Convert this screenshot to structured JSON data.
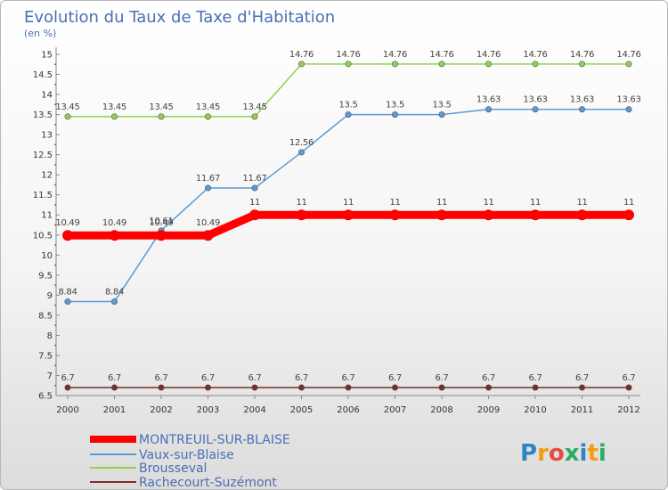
{
  "chart_data": {
    "type": "line",
    "title": "Evolution du Taux de Taxe d'Habitation",
    "subtitle": "(en %)",
    "x": [
      "2000",
      "2001",
      "2002",
      "2003",
      "2004",
      "2005",
      "2006",
      "2007",
      "2008",
      "2009",
      "2010",
      "2011",
      "2012"
    ],
    "ylim": [
      6.5,
      15
    ],
    "yticks": [
      "6.5",
      "7",
      "7.5",
      "8",
      "8.5",
      "9",
      "9.5",
      "10",
      "10.5",
      "11",
      "11.5",
      "12",
      "12.5",
      "13",
      "13.5",
      "14",
      "14.5",
      "15"
    ],
    "grid": false,
    "legend_position": "bottom-left",
    "series": [
      {
        "name": "MONTREUIL-SUR-BLAISE",
        "color": "#ff0000",
        "values": [
          10.49,
          10.49,
          10.49,
          10.49,
          11,
          11,
          11,
          11,
          11,
          11,
          11,
          11,
          11
        ],
        "labels": [
          "10.49",
          "10.49",
          "10.49",
          "10.49",
          "11",
          "11",
          "11",
          "11",
          "11",
          "11",
          "11",
          "11",
          "11"
        ]
      },
      {
        "name": "Vaux-sur-Blaise",
        "color": "#5b9bd5",
        "values": [
          8.84,
          8.84,
          10.61,
          11.67,
          11.67,
          12.56,
          13.5,
          13.5,
          13.5,
          13.63,
          13.63,
          13.63,
          13.63
        ],
        "labels": [
          "8.84",
          "8.84",
          "10.61",
          "11.67",
          "11.67",
          "12.56",
          "13.5",
          "13.5",
          "13.5",
          "13.63",
          "13.63",
          "13.63",
          "13.63"
        ]
      },
      {
        "name": "Brousseval",
        "color": "#92d050",
        "values": [
          13.45,
          13.45,
          13.45,
          13.45,
          13.45,
          14.76,
          14.76,
          14.76,
          14.76,
          14.76,
          14.76,
          14.76,
          14.76
        ],
        "labels": [
          "13.45",
          "13.45",
          "13.45",
          "13.45",
          "13.45",
          "14.76",
          "14.76",
          "14.76",
          "14.76",
          "14.76",
          "14.76",
          "14.76",
          "14.76"
        ]
      },
      {
        "name": "Rachecourt-Suzémont",
        "color": "#7b2c2c",
        "values": [
          6.7,
          6.7,
          6.7,
          6.7,
          6.7,
          6.7,
          6.7,
          6.7,
          6.7,
          6.7,
          6.7,
          6.7,
          6.7
        ],
        "labels": [
          "6.7",
          "6.7",
          "6.7",
          "6.7",
          "6.7",
          "6.7",
          "6.7",
          "6.7",
          "6.7",
          "6.7",
          "6.7",
          "6.7",
          "6.7"
        ]
      }
    ]
  },
  "brand": {
    "text": "Proxiti",
    "letters": [
      "P",
      "r",
      "o",
      "x",
      "i",
      "t",
      "i"
    ],
    "colors": [
      "#2e86c1",
      "#f39c12",
      "#e74c3c",
      "#27ae60",
      "#2e86c1",
      "#f39c12",
      "#27ae60"
    ]
  }
}
